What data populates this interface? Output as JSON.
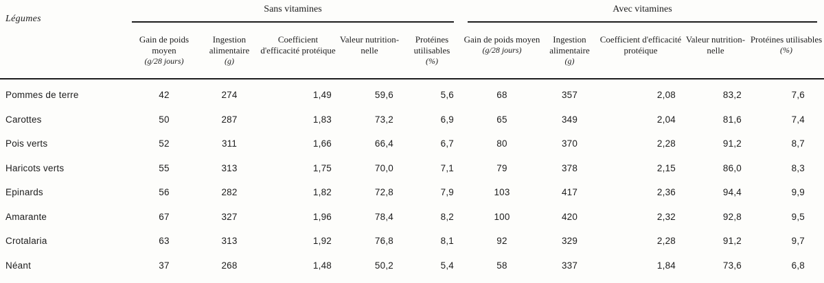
{
  "table": {
    "row_header_label": "Légumes",
    "groups": [
      {
        "label": "Sans vitamines"
      },
      {
        "label": "Avec vitamines"
      }
    ],
    "columns": [
      {
        "label": "Gain de poids moyen",
        "unit": "(g/28 jours)"
      },
      {
        "label": "Ingestion alimentaire",
        "unit": "(g)"
      },
      {
        "label": "Coefficient d'efficacité protéique",
        "unit": ""
      },
      {
        "label": "Valeur nutrition-nelle",
        "unit": ""
      },
      {
        "label": "Protéines utilisables",
        "unit": "(%)"
      }
    ],
    "rows": [
      {
        "legume": "Pommes de terre",
        "sans": [
          "42",
          "274",
          "1,49",
          "59,6",
          "5,6"
        ],
        "avec": [
          "68",
          "357",
          "2,08",
          "83,2",
          "7,6"
        ]
      },
      {
        "legume": "Carottes",
        "sans": [
          "50",
          "287",
          "1,83",
          "73,2",
          "6,9"
        ],
        "avec": [
          "65",
          "349",
          "2,04",
          "81,6",
          "7,4"
        ]
      },
      {
        "legume": "Pois verts",
        "sans": [
          "52",
          "311",
          "1,66",
          "66,4",
          "6,7"
        ],
        "avec": [
          "80",
          "370",
          "2,28",
          "91,2",
          "8,7"
        ]
      },
      {
        "legume": "Haricots verts",
        "sans": [
          "55",
          "313",
          "1,75",
          "70,0",
          "7,1"
        ],
        "avec": [
          "79",
          "378",
          "2,15",
          "86,0",
          "8,3"
        ]
      },
      {
        "legume": "Epinards",
        "sans": [
          "56",
          "282",
          "1,82",
          "72,8",
          "7,9"
        ],
        "avec": [
          "103",
          "417",
          "2,36",
          "94,4",
          "9,9"
        ]
      },
      {
        "legume": "Amarante",
        "sans": [
          "67",
          "327",
          "1,96",
          "78,4",
          "8,2"
        ],
        "avec": [
          "100",
          "420",
          "2,32",
          "92,8",
          "9,5"
        ]
      },
      {
        "legume": "Crotalaria",
        "sans": [
          "63",
          "313",
          "1,92",
          "76,8",
          "8,1"
        ],
        "avec": [
          "92",
          "329",
          "2,28",
          "91,2",
          "9,7"
        ]
      },
      {
        "legume": "Néant",
        "sans": [
          "37",
          "268",
          "1,48",
          "50,2",
          "5,4"
        ],
        "avec": [
          "58",
          "337",
          "1,84",
          "73,6",
          "6,8"
        ]
      }
    ]
  },
  "colors": {
    "text": "#1c1c1c",
    "background": "#fdfdfb",
    "rule": "#1b1b1b"
  }
}
